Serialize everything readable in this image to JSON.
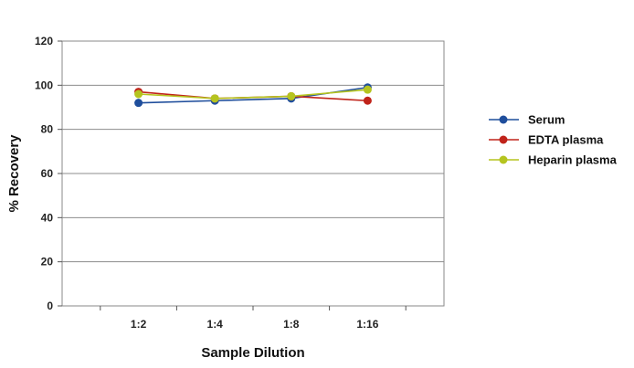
{
  "chart_data": {
    "type": "line",
    "categories": [
      "1:2",
      "1:4",
      "1:8",
      "1:16"
    ],
    "xlabel": "Sample Dilution",
    "ylabel": "% Recovery",
    "ylim": [
      0,
      120
    ],
    "yticks": [
      0,
      20,
      40,
      60,
      80,
      100,
      120
    ],
    "grid": true,
    "legend_position": "right",
    "series": [
      {
        "name": "Serum",
        "color": "#1f4e9c",
        "values": [
          92,
          93,
          94,
          99
        ]
      },
      {
        "name": "EDTA plasma",
        "color": "#c0231a",
        "values": [
          97,
          94,
          95,
          93
        ]
      },
      {
        "name": "Heparin plasma",
        "color": "#b5c41f",
        "values": [
          96,
          94,
          95,
          98
        ]
      }
    ]
  }
}
